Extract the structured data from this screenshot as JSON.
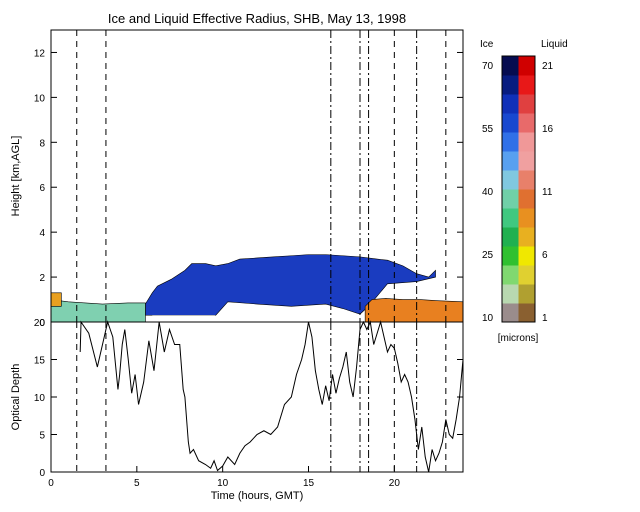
{
  "chart_data": [
    {
      "type": "heatmap",
      "title": "Ice and Liquid Effective Radius, SHB, May 13, 1998",
      "ylabel": "Height [km,AGL]",
      "xlim": [
        0,
        24
      ],
      "ylim": [
        0,
        13
      ],
      "y_ticks": [
        "0",
        "2",
        "4",
        "6",
        "8",
        "10",
        "12"
      ],
      "colorbar": {
        "ice_label": "Ice",
        "liquid_label": "Liquid",
        "unit_label": "[microns]",
        "ice_ticks": [
          "70",
          "55",
          "40",
          "25",
          "10"
        ],
        "liquid_ticks": [
          "21",
          "16",
          "11",
          "6",
          "1"
        ],
        "ice_colors": [
          "#9a8c8c",
          "#b8d8b0",
          "#80d870",
          "#30c030",
          "#20b050",
          "#40c880",
          "#70d0a8",
          "#80c8e0",
          "#58a0f0",
          "#3070e8",
          "#1848d0",
          "#1030b8",
          "#081c80",
          "#060c50"
        ],
        "liquid_colors": [
          "#8a6030",
          "#b0a030",
          "#e0d030",
          "#f0e800",
          "#e8b020",
          "#e89020",
          "#e07030",
          "#e8806a",
          "#f0a0a0",
          "#f09898",
          "#e86a6a",
          "#e04040",
          "#e81818",
          "#d00000"
        ]
      },
      "layers": [
        {
          "name": "ice",
          "color": "#1a3cc0",
          "top": [
            [
              5.5,
              0.8
            ],
            [
              5.9,
              1.3
            ],
            [
              6.2,
              1.6
            ],
            [
              7.0,
              1.9
            ],
            [
              7.8,
              2.3
            ],
            [
              8.2,
              2.6
            ],
            [
              9.0,
              2.6
            ],
            [
              9.6,
              2.5
            ],
            [
              10.3,
              2.6
            ],
            [
              11.0,
              2.8
            ],
            [
              12.0,
              2.85
            ],
            [
              13.0,
              2.9
            ],
            [
              14.0,
              2.95
            ],
            [
              15.0,
              3.0
            ],
            [
              16.0,
              3.0
            ],
            [
              17.0,
              2.95
            ],
            [
              18.0,
              2.9
            ],
            [
              19.0,
              2.8
            ],
            [
              19.6,
              2.75
            ],
            [
              20.5,
              2.5
            ],
            [
              21.3,
              2.15
            ],
            [
              22.0,
              2.0
            ],
            [
              22.4,
              2.3
            ]
          ],
          "base": [
            [
              5.5,
              0.3
            ],
            [
              9.6,
              0.3
            ],
            [
              10.3,
              0.9
            ],
            [
              12.0,
              0.8
            ],
            [
              14.0,
              0.7
            ],
            [
              16.0,
              0.8
            ],
            [
              17.0,
              0.6
            ],
            [
              18.0,
              0.35
            ],
            [
              18.5,
              0.7
            ],
            [
              19.6,
              1.7
            ],
            [
              21.3,
              1.8
            ],
            [
              22.4,
              2.0
            ]
          ]
        },
        {
          "name": "ice-low",
          "color": "#7fd0b0",
          "top": [
            [
              0.0,
              1.0
            ],
            [
              1.0,
              0.9
            ],
            [
              3.0,
              0.8
            ],
            [
              4.5,
              0.85
            ],
            [
              5.5,
              0.85
            ]
          ],
          "base": [
            [
              0.0,
              0.0
            ],
            [
              5.5,
              0.0
            ]
          ]
        },
        {
          "name": "liquid",
          "color": "#e88020",
          "top": [
            [
              18.3,
              0.7
            ],
            [
              18.7,
              1.0
            ],
            [
              19.5,
              1.05
            ],
            [
              20.5,
              1.0
            ],
            [
              21.5,
              1.0
            ],
            [
              22.5,
              0.95
            ],
            [
              24.0,
              0.9
            ]
          ],
          "base": [
            [
              18.3,
              0.0
            ],
            [
              24.0,
              0.0
            ]
          ]
        },
        {
          "name": "liquid-left",
          "color": "#e8a020",
          "top": [
            [
              0.0,
              1.3
            ],
            [
              0.6,
              1.3
            ]
          ],
          "base": [
            [
              0.0,
              0.7
            ],
            [
              0.6,
              0.7
            ]
          ]
        }
      ],
      "blank_intervals": [
        [
          5.9,
          9.55
        ],
        [
          9.8,
          18.0
        ]
      ],
      "dashed_lines": [
        1.5,
        3.2,
        20.0,
        23.0
      ],
      "dashdot_lines": [
        16.3,
        18.0,
        18.5,
        21.3
      ]
    },
    {
      "type": "line",
      "xlabel": "Time (hours, GMT)",
      "ylabel": "Optical Depth",
      "xlim": [
        0,
        24
      ],
      "ylim": [
        0,
        20
      ],
      "x_ticks": [
        "0",
        "5",
        "10",
        "15",
        "20"
      ],
      "y_ticks": [
        "0",
        "5",
        "10",
        "15",
        "20"
      ],
      "x": [
        1.7,
        1.75,
        2.2,
        2.7,
        3.2,
        3.3,
        3.6,
        3.9,
        4.0,
        4.15,
        4.3,
        4.5,
        4.7,
        4.9,
        5.1,
        5.4,
        5.7,
        6.0,
        6.3,
        6.6,
        6.9,
        7.2,
        7.5,
        7.7,
        7.8,
        7.9,
        8.0,
        8.1,
        8.3,
        8.6,
        9.0,
        9.3,
        9.5,
        9.7,
        10.0,
        10.3,
        10.7,
        11.0,
        11.3,
        11.6,
        12.0,
        12.4,
        12.8,
        13.2,
        13.6,
        14.0,
        14.3,
        14.6,
        14.8,
        15.0,
        15.2,
        15.4,
        15.6,
        15.8,
        16.0,
        16.2,
        16.4,
        16.6,
        16.8,
        17.0,
        17.2,
        17.4,
        17.6,
        17.8,
        18.0,
        18.2,
        18.4,
        18.6,
        18.8,
        19.0,
        19.2,
        19.4,
        19.6,
        19.8,
        20.0,
        20.2,
        20.4,
        20.6,
        20.8,
        21.0,
        21.2,
        21.4,
        21.6,
        21.8,
        22.0,
        22.2,
        22.4,
        22.6,
        22.8,
        23.0,
        23.2,
        23.4,
        23.6,
        23.8,
        24.0
      ],
      "y": [
        16.0,
        20.0,
        18.5,
        14.0,
        19.0,
        20.0,
        18.0,
        11.0,
        13.0,
        17.0,
        19.0,
        15.0,
        10.5,
        13.0,
        9.0,
        12.0,
        17.5,
        13.5,
        20.0,
        16.0,
        19.0,
        17.0,
        17.0,
        11.0,
        10.0,
        7.0,
        4.0,
        2.5,
        3.0,
        1.5,
        1.0,
        0.5,
        1.5,
        0.2,
        0.8,
        2.0,
        1.0,
        2.5,
        3.5,
        4.0,
        5.0,
        5.5,
        5.0,
        6.0,
        9.0,
        10.0,
        13.0,
        15.0,
        17.0,
        20.0,
        18.0,
        13.5,
        11.0,
        9.0,
        11.5,
        9.5,
        13.0,
        10.5,
        12.5,
        14.0,
        16.0,
        12.0,
        10.0,
        14.0,
        19.0,
        20.0,
        19.0,
        20.0,
        17.0,
        18.5,
        20.0,
        18.0,
        16.0,
        17.0,
        16.5,
        14.5,
        12.0,
        13.0,
        12.0,
        10.0,
        7.0,
        3.0,
        6.0,
        2.0,
        0.0,
        3.0,
        1.5,
        2.5,
        4.0,
        7.0,
        5.0,
        4.5,
        7.0,
        10.0,
        15.0
      ],
      "dashed_lines": [
        1.5,
        3.2,
        20.0,
        23.0
      ],
      "dashdot_lines": [
        16.3,
        18.0,
        18.5,
        21.3
      ]
    }
  ]
}
